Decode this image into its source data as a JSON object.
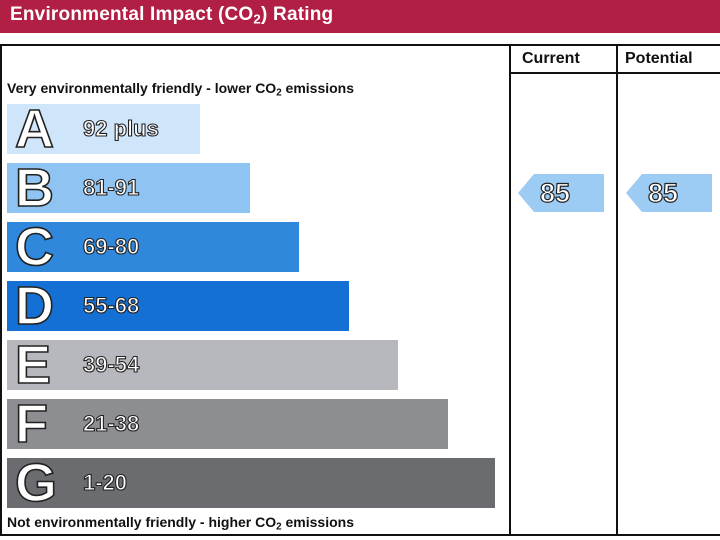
{
  "header": {
    "title_prefix": "Environmental Impact (CO",
    "title_sub": "2",
    "title_suffix": ") Rating",
    "color": "#b21f44"
  },
  "columns": {
    "current": "Current",
    "potential": "Potential"
  },
  "top_note": {
    "prefix": "Very environmentally friendly - lower CO",
    "sub": "2",
    "suffix": " emissions"
  },
  "bottom_note": {
    "prefix": "Not environmentally friendly - higher CO",
    "sub": "2",
    "suffix": " emissions"
  },
  "bands": [
    {
      "letter": "A",
      "range": "92 plus",
      "color": "#cfe6fa"
    },
    {
      "letter": "B",
      "range": "81-91",
      "color": "#8ec3f2"
    },
    {
      "letter": "C",
      "range": "69-80",
      "color": "#2f88dc"
    },
    {
      "letter": "D",
      "range": "55-68",
      "color": "#1570d6"
    },
    {
      "letter": "E",
      "range": "39-54",
      "color": "#b7b8bd"
    },
    {
      "letter": "F",
      "range": "21-38",
      "color": "#8d8e92"
    },
    {
      "letter": "G",
      "range": "1-20",
      "color": "#6b6c70"
    }
  ],
  "ratings": {
    "current": {
      "value": "85",
      "color": "#9ccbf4"
    },
    "potential": {
      "value": "85",
      "color": "#9ccbf4"
    }
  }
}
